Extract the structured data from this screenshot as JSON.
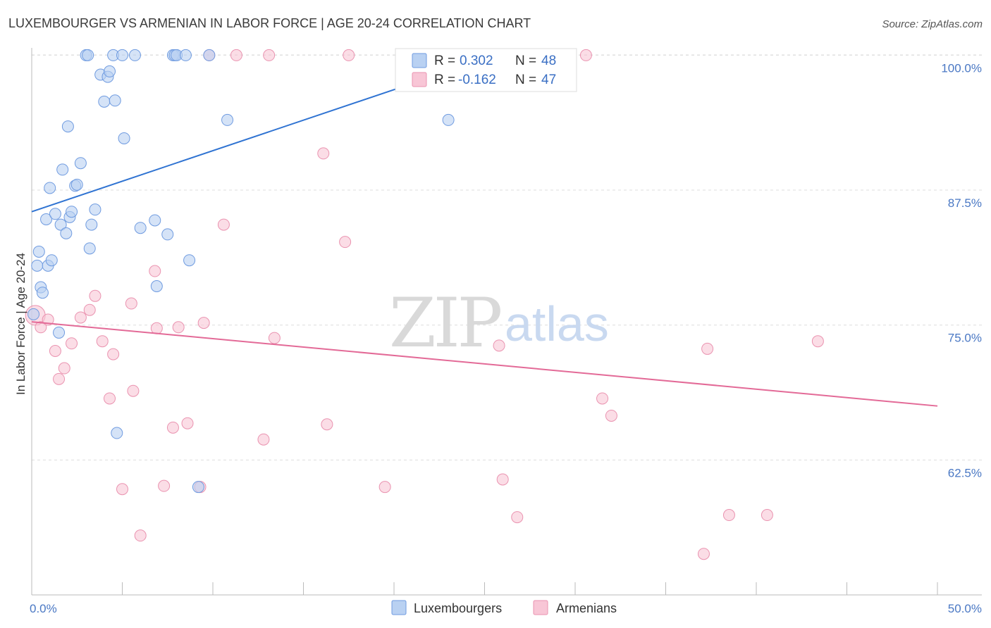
{
  "title": "LUXEMBOURGER VS ARMENIAN IN LABOR FORCE | AGE 20-24 CORRELATION CHART",
  "source": "Source: ZipAtlas.com",
  "watermark": {
    "zip": "ZIP",
    "atlas": "atlas"
  },
  "colors": {
    "blue_fill": "#b9d1f2",
    "blue_stroke": "#6f9be0",
    "blue_line": "#2f73d2",
    "pink_fill": "#f8c6d6",
    "pink_stroke": "#ea93b0",
    "pink_line": "#e36a97",
    "grid": "#dddddd",
    "axis": "#bbbbbb"
  },
  "chart_data": {
    "type": "scatter",
    "title": "LUXEMBOURGER VS ARMENIAN IN LABOR FORCE | AGE 20-24 CORRELATION CHART",
    "xlabel": "",
    "ylabel": "In Labor Force | Age 20-24",
    "xlim": [
      0,
      50
    ],
    "ylim": [
      50.0,
      101.2
    ],
    "x_tick_labels": [
      {
        "value": 0,
        "label": "0.0%"
      },
      {
        "value": 50,
        "label": "50.0%"
      }
    ],
    "y_tick_labels": [
      {
        "value": 62.5,
        "label": "62.5%"
      },
      {
        "value": 75.0,
        "label": "75.0%"
      },
      {
        "value": 87.5,
        "label": "87.5%"
      },
      {
        "value": 100.0,
        "label": "100.0%"
      }
    ],
    "legend": [
      {
        "name": "Luxembourgers",
        "r_label": "R =",
        "r_value": "0.302",
        "n_label": "N =",
        "n_value": "48"
      },
      {
        "name": "Armenians",
        "r_label": "R =",
        "r_value": "-0.162",
        "n_label": "N =",
        "n_value": "47"
      }
    ],
    "series": [
      {
        "name": "Luxembourgers",
        "trend": {
          "x0": 0,
          "y0": 85.5,
          "x1": 26.0,
          "y1": 100.2
        },
        "points": [
          [
            0.1,
            76.0
          ],
          [
            0.3,
            80.5
          ],
          [
            0.4,
            81.8
          ],
          [
            0.5,
            78.5
          ],
          [
            0.6,
            78.0
          ],
          [
            0.8,
            84.8
          ],
          [
            0.9,
            80.5
          ],
          [
            1.0,
            87.7
          ],
          [
            1.1,
            81.0
          ],
          [
            1.3,
            85.3
          ],
          [
            1.5,
            74.3
          ],
          [
            1.6,
            84.3
          ],
          [
            1.7,
            89.4
          ],
          [
            1.9,
            83.5
          ],
          [
            2.0,
            93.4
          ],
          [
            2.1,
            85.0
          ],
          [
            2.2,
            85.5
          ],
          [
            2.4,
            87.9
          ],
          [
            2.5,
            88.0
          ],
          [
            2.7,
            90.0
          ],
          [
            3.0,
            100.0
          ],
          [
            3.1,
            100.0
          ],
          [
            3.2,
            82.1
          ],
          [
            3.3,
            84.3
          ],
          [
            3.5,
            85.7
          ],
          [
            3.8,
            98.2
          ],
          [
            4.0,
            95.7
          ],
          [
            4.2,
            98.0
          ],
          [
            4.3,
            98.5
          ],
          [
            4.5,
            100.0
          ],
          [
            4.6,
            95.8
          ],
          [
            4.7,
            65.0
          ],
          [
            5.0,
            100.0
          ],
          [
            5.1,
            92.3
          ],
          [
            5.7,
            100.0
          ],
          [
            6.0,
            84.0
          ],
          [
            6.8,
            84.7
          ],
          [
            6.9,
            78.6
          ],
          [
            7.5,
            83.4
          ],
          [
            7.8,
            100.0
          ],
          [
            7.9,
            100.0
          ],
          [
            8.0,
            100.0
          ],
          [
            8.5,
            100.0
          ],
          [
            8.7,
            81.0
          ],
          [
            9.2,
            60.0
          ],
          [
            9.8,
            100.0
          ],
          [
            10.8,
            94.0
          ],
          [
            23.0,
            94.0
          ]
        ]
      },
      {
        "name": "Armenians",
        "trend": {
          "x0": 0,
          "y0": 75.3,
          "x1": 50.0,
          "y1": 67.5
        },
        "points": [
          [
            0.2,
            75.9
          ],
          [
            0.5,
            74.8
          ],
          [
            0.9,
            75.5
          ],
          [
            1.3,
            72.6
          ],
          [
            1.5,
            70.0
          ],
          [
            1.8,
            71.0
          ],
          [
            2.2,
            73.3
          ],
          [
            2.7,
            75.7
          ],
          [
            3.2,
            76.4
          ],
          [
            3.5,
            77.7
          ],
          [
            3.9,
            73.5
          ],
          [
            4.3,
            68.2
          ],
          [
            4.5,
            72.3
          ],
          [
            5.0,
            59.8
          ],
          [
            5.5,
            77.0
          ],
          [
            5.6,
            68.9
          ],
          [
            6.0,
            55.5
          ],
          [
            6.8,
            80.0
          ],
          [
            6.9,
            74.7
          ],
          [
            7.3,
            60.1
          ],
          [
            7.8,
            65.5
          ],
          [
            8.1,
            74.8
          ],
          [
            8.6,
            65.9
          ],
          [
            9.3,
            60.0
          ],
          [
            9.5,
            75.2
          ],
          [
            9.8,
            100.0
          ],
          [
            10.6,
            84.3
          ],
          [
            11.3,
            100.0
          ],
          [
            12.8,
            64.4
          ],
          [
            13.1,
            100.0
          ],
          [
            13.4,
            73.8
          ],
          [
            16.3,
            65.8
          ],
          [
            16.1,
            90.9
          ],
          [
            17.3,
            82.7
          ],
          [
            17.5,
            100.0
          ],
          [
            19.5,
            60.0
          ],
          [
            25.8,
            73.1
          ],
          [
            26.0,
            60.7
          ],
          [
            26.8,
            57.2
          ],
          [
            30.6,
            100.0
          ],
          [
            31.5,
            68.2
          ],
          [
            32.0,
            66.6
          ],
          [
            37.1,
            53.8
          ],
          [
            37.3,
            72.8
          ],
          [
            38.5,
            57.4
          ],
          [
            40.6,
            57.4
          ],
          [
            43.4,
            73.5
          ]
        ]
      }
    ]
  }
}
